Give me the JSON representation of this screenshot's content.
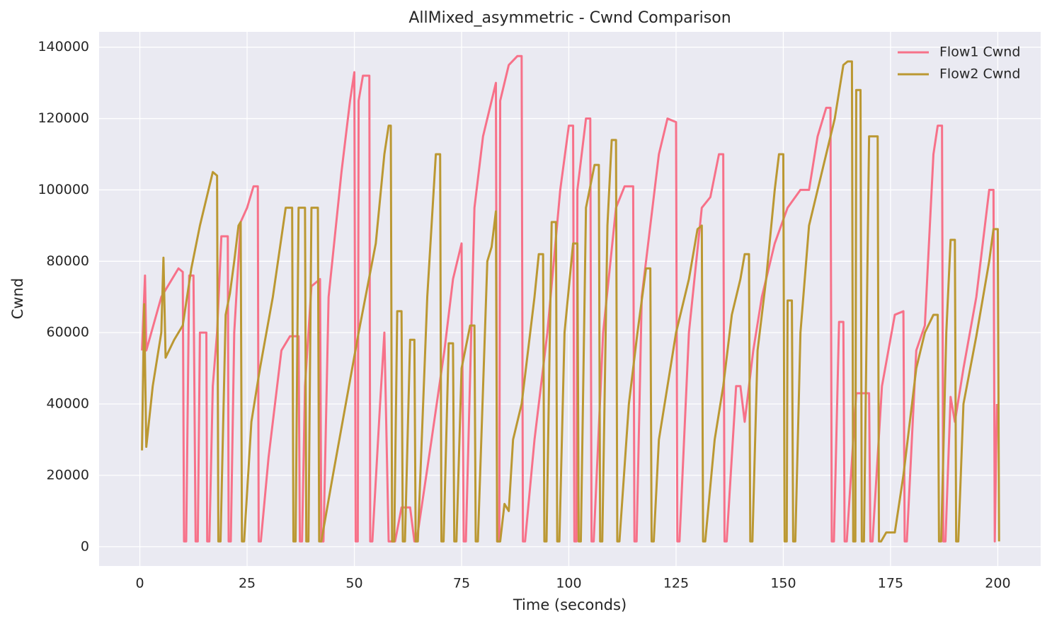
{
  "chart_data": {
    "type": "line",
    "title": "AllMixed_asymmetric - Cwnd Comparison",
    "x_label": "Time (seconds)",
    "y_label": "Cwnd",
    "xlim": [
      -9.5,
      210
    ],
    "ylim": [
      -5400,
      144300
    ],
    "xticks": [
      0,
      25,
      50,
      75,
      100,
      125,
      150,
      175,
      200
    ],
    "yticks": [
      0,
      20000,
      40000,
      60000,
      80000,
      100000,
      120000,
      140000
    ],
    "grid": true,
    "legend": "upper right",
    "series": [
      {
        "name": "Flow1 Cwnd",
        "color": "#f77189",
        "x": [
          0.5,
          1.2,
          1.5,
          5,
          9,
          10,
          10.3,
          10.8,
          11.5,
          12.5,
          13,
          13.5,
          14,
          15.5,
          15.7,
          16.2,
          17,
          18,
          19,
          20.5,
          20.7,
          21.2,
          22,
          23.5,
          25,
          26.5,
          27.5,
          27.7,
          28.2,
          30,
          33,
          35,
          37,
          37.3,
          37.8,
          38.5,
          40,
          42,
          42.3,
          42.8,
          44,
          47,
          49,
          50,
          50.3,
          50.8,
          51,
          52,
          53.5,
          53.7,
          54.2,
          56,
          57,
          58,
          59.5,
          61,
          63,
          64,
          64.5,
          68,
          71,
          73,
          75,
          75.5,
          76,
          78,
          80,
          82,
          83,
          83.3,
          83.8,
          84,
          86,
          88,
          89,
          89.3,
          89.8,
          92,
          95,
          98,
          100,
          101,
          101.3,
          101.8,
          102,
          104,
          105,
          105.3,
          105.8,
          108,
          111,
          113,
          115,
          115.3,
          115.8,
          117,
          121,
          123,
          125,
          125.3,
          125.8,
          128,
          131,
          133,
          135,
          136,
          136.3,
          136.8,
          139,
          140,
          141,
          143,
          145,
          148,
          151,
          154,
          156,
          158,
          160,
          161,
          161.3,
          161.8,
          163,
          164,
          164.3,
          164.8,
          167,
          170,
          170.3,
          170.8,
          173,
          176,
          178,
          178.3,
          178.8,
          181,
          183,
          185,
          186,
          187,
          187.3,
          187.8,
          189,
          190,
          192,
          195,
          198,
          199,
          199.3,
          199.8
        ],
        "values": [
          55000,
          76000,
          55000,
          70000,
          78000,
          77000,
          1500,
          1500,
          76000,
          76000,
          1500,
          1500,
          60000,
          60000,
          1500,
          1500,
          45000,
          60000,
          87000,
          87000,
          1500,
          1500,
          60000,
          91000,
          95000,
          101000,
          101000,
          1500,
          1500,
          25000,
          55000,
          59000,
          59000,
          1500,
          1500,
          45000,
          73000,
          75000,
          1500,
          1500,
          70000,
          105000,
          125000,
          133000,
          1500,
          1500,
          125000,
          132000,
          132000,
          1500,
          1500,
          40000,
          60000,
          1500,
          1500,
          11000,
          11000,
          1500,
          1500,
          30000,
          55000,
          75000,
          85000,
          1500,
          1500,
          95000,
          115000,
          125000,
          130000,
          1500,
          1500,
          125000,
          135000,
          137500,
          137500,
          1500,
          1500,
          30000,
          60000,
          100000,
          118000,
          118000,
          1500,
          1500,
          100000,
          120000,
          120000,
          1500,
          1500,
          60000,
          95000,
          101000,
          101000,
          1500,
          1500,
          70000,
          110000,
          120000,
          119000,
          1500,
          1500,
          60000,
          95000,
          98000,
          110000,
          110000,
          1500,
          1500,
          45000,
          45000,
          35000,
          55000,
          70000,
          85000,
          95000,
          100000,
          100000,
          115000,
          123000,
          123000,
          1500,
          1500,
          63000,
          63000,
          1500,
          1500,
          43000,
          43000,
          1500,
          1500,
          45000,
          65000,
          66000,
          1500,
          1500,
          55000,
          62000,
          110000,
          118000,
          118000,
          1500,
          1500,
          42000,
          35000,
          50000,
          70000,
          100000,
          100000,
          1500,
          40000
        ]
      },
      {
        "name": "Flow2 Cwnd",
        "color": "#bb9832",
        "x": [
          0.5,
          1,
          1.5,
          3,
          5,
          5.5,
          6,
          8,
          10,
          12,
          14,
          16,
          17,
          18,
          18.3,
          18.8,
          20,
          21,
          22,
          23,
          23.5,
          23.8,
          24.3,
          26,
          28,
          31,
          34,
          35.5,
          35.8,
          36.3,
          37,
          38.5,
          38.8,
          39.3,
          40,
          41.5,
          41.8,
          42.3,
          45,
          48,
          51,
          55,
          57,
          58,
          58.5,
          58.8,
          59.3,
          60,
          61,
          61.3,
          61.8,
          63,
          64,
          64.3,
          64.8,
          67,
          69,
          70,
          70.3,
          70.8,
          72,
          73,
          73.3,
          73.8,
          75,
          77,
          78,
          78.3,
          78.8,
          81,
          82,
          83,
          83.3,
          84,
          85,
          86,
          87,
          89,
          92,
          93,
          94,
          94.3,
          94.8,
          96,
          97,
          97.3,
          97.8,
          99,
          101,
          102,
          102.3,
          102.8,
          104,
          106,
          107,
          107.3,
          107.8,
          109,
          110,
          111,
          111.3,
          111.8,
          114,
          116,
          118,
          119,
          119.3,
          119.8,
          121,
          125,
          128,
          130,
          131,
          131.3,
          131.8,
          134,
          136,
          138,
          140,
          141,
          142,
          142.3,
          142.8,
          144,
          146,
          148,
          149,
          150,
          150.3,
          150.8,
          151,
          152,
          152.3,
          152.8,
          154,
          156,
          158,
          160,
          162,
          164,
          165,
          166,
          166.3,
          166.8,
          167,
          168,
          168.3,
          168.8,
          170,
          172,
          172.3,
          172.8,
          174,
          176,
          178,
          181,
          183,
          185,
          186,
          186.3,
          186.8,
          188,
          189,
          190,
          190.3,
          190.8,
          192,
          195,
          198,
          199,
          200,
          200.3
        ],
        "values": [
          27000,
          68000,
          28000,
          45000,
          60000,
          81000,
          53000,
          58000,
          62000,
          78000,
          90000,
          100000,
          105000,
          104000,
          1500,
          1500,
          65000,
          71000,
          80000,
          90000,
          91000,
          1500,
          1500,
          35000,
          50000,
          70000,
          95000,
          95000,
          1500,
          1500,
          95000,
          95000,
          1500,
          1500,
          95000,
          95000,
          1500,
          1500,
          20000,
          40000,
          60000,
          85000,
          110000,
          118000,
          118000,
          1500,
          1500,
          66000,
          66000,
          1500,
          1500,
          58000,
          58000,
          1500,
          1500,
          70000,
          110000,
          110000,
          1500,
          1500,
          57000,
          57000,
          1500,
          1500,
          50000,
          62000,
          62000,
          1500,
          1500,
          80000,
          84000,
          94000,
          1500,
          1500,
          12000,
          10000,
          30000,
          40000,
          70000,
          82000,
          82000,
          1500,
          1500,
          91000,
          91000,
          1500,
          1500,
          60000,
          85000,
          85000,
          1500,
          1500,
          95000,
          107000,
          107000,
          1500,
          1500,
          90000,
          114000,
          114000,
          1500,
          1500,
          40000,
          60000,
          78000,
          78000,
          1500,
          1500,
          30000,
          60000,
          75000,
          89000,
          90000,
          1500,
          1500,
          30000,
          45000,
          65000,
          75000,
          82000,
          82000,
          1500,
          1500,
          55000,
          75000,
          100000,
          110000,
          110000,
          1500,
          1500,
          69000,
          69000,
          1500,
          1500,
          60000,
          90000,
          100000,
          110000,
          120000,
          135000,
          136000,
          136000,
          1500,
          1500,
          128000,
          128000,
          1500,
          1500,
          115000,
          115000,
          1500,
          1500,
          4000,
          4000,
          20000,
          50000,
          60000,
          65000,
          65000,
          1500,
          1500,
          60000,
          86000,
          86000,
          1500,
          1500,
          40000,
          59000,
          80000,
          89000,
          89000,
          1500
        ]
      }
    ]
  }
}
